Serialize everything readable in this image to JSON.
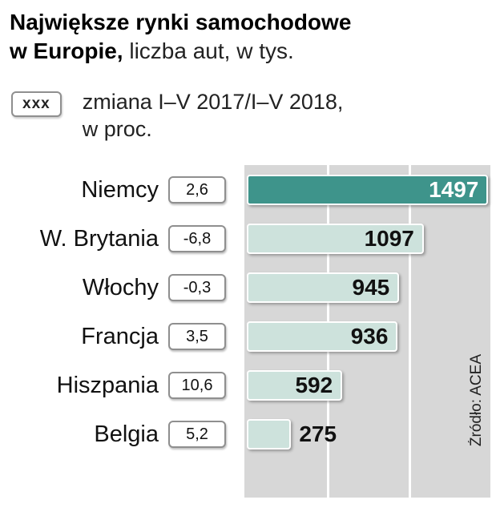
{
  "header": {
    "title_line1": "Największe rynki samochodowe",
    "title_line2_bold": "w Europie,",
    "title_line2_rest": " liczba aut, w tys."
  },
  "legend": {
    "box_label": "xxx",
    "line1": "zmiana I–V 2017/I–V 2018,",
    "line2": "w proc."
  },
  "source": "Źródło: ACEA",
  "chart_data": {
    "type": "bar",
    "orientation": "horizontal",
    "title": "Największe rynki samochodowe w Europie, liczba aut, w tys.",
    "legend_note": "zmiana I–V 2017/I–V 2018, w proc.",
    "source": "Źródło: ACEA",
    "categories": [
      "Niemcy",
      "W. Brytania",
      "Włochy",
      "Francja",
      "Hiszpania",
      "Belgia"
    ],
    "values": [
      1497,
      1097,
      945,
      936,
      592,
      275
    ],
    "changes": [
      "2,6",
      "-6,8",
      "-0,3",
      "3,5",
      "10,6",
      "5,2"
    ],
    "xlim": [
      0,
      1500
    ],
    "highlight_index": 0,
    "outside_label_indices": [
      5
    ],
    "grid": "vertical white gridlines at thirds of plot area",
    "colors": {
      "highlight_bar": "#3e948b",
      "bar": "#cde2dc",
      "plot_background": "#d7d7d7",
      "highlight_value_text": "#ffffff",
      "value_text": "#111111"
    }
  }
}
